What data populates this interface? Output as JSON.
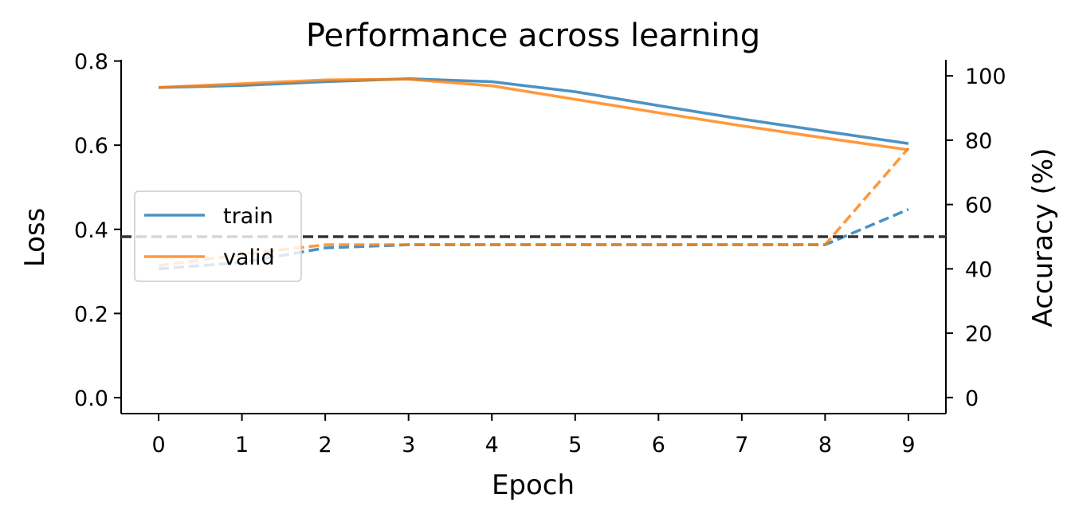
{
  "chart_data": {
    "type": "line",
    "title": "Performance across learning",
    "xlabel": "Epoch",
    "ylabel_left": "Loss",
    "ylabel_right": "Accuracy (%)",
    "x": [
      0,
      1,
      2,
      3,
      4,
      5,
      6,
      7,
      8,
      9
    ],
    "x_ticks": [
      "0",
      "1",
      "2",
      "3",
      "4",
      "5",
      "6",
      "7",
      "8",
      "9"
    ],
    "xlim": [
      -0.45,
      9.45
    ],
    "ylim_left": [
      -0.038,
      0.803
    ],
    "yticks_left": [
      "0.0",
      "0.2",
      "0.4",
      "0.6",
      "0.8"
    ],
    "ylim_right": [
      -5,
      105
    ],
    "yticks_right": [
      "0",
      "20",
      "40",
      "60",
      "80",
      "100"
    ],
    "grid": false,
    "legend_position": "center-left",
    "series": [
      {
        "name": "train",
        "color": "#1f77b4",
        "loss": [
          0.737,
          0.742,
          0.751,
          0.758,
          0.751,
          0.727,
          0.694,
          0.662,
          0.633,
          0.604
        ],
        "accuracy": [
          40.0,
          42.0,
          46.5,
          47.5,
          47.5,
          47.5,
          47.5,
          47.5,
          47.5,
          58.5
        ]
      },
      {
        "name": "valid",
        "color": "#ff7f0e",
        "loss": [
          0.737,
          0.746,
          0.755,
          0.757,
          0.741,
          0.709,
          0.677,
          0.646,
          0.617,
          0.589
        ],
        "accuracy": [
          41.0,
          44.5,
          47.5,
          47.5,
          47.5,
          47.5,
          47.5,
          47.5,
          47.5,
          77.5
        ]
      }
    ],
    "reference_line": {
      "axis": "right",
      "value": 50,
      "color": "#333333",
      "style": "dashed"
    }
  }
}
